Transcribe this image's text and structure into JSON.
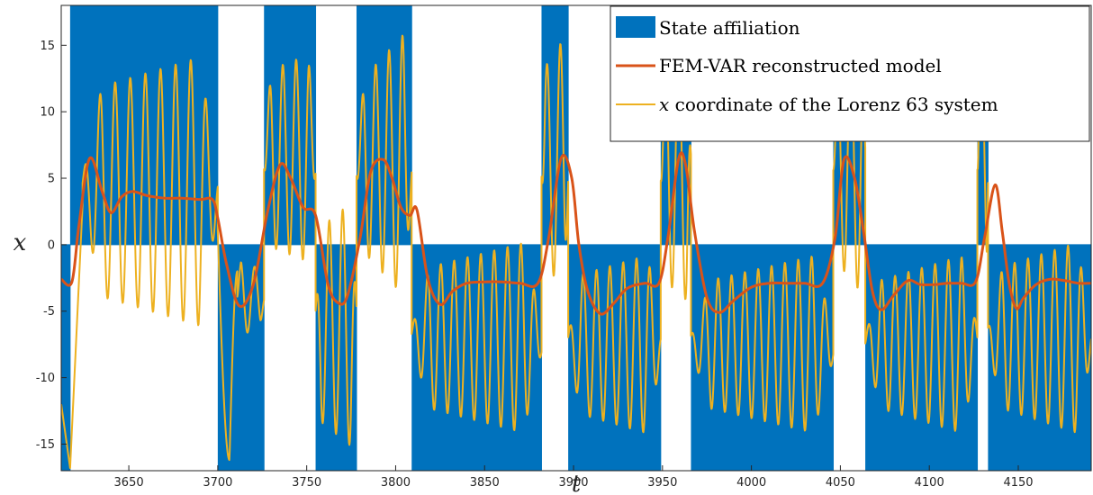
{
  "chart_data": {
    "type": "line",
    "xlabel": "t",
    "ylabel": "x",
    "xlim": [
      3612,
      3191
    ],
    "ylim": [
      -17,
      18
    ],
    "xticks": [
      3650,
      3700,
      3750,
      3800,
      3850,
      3900,
      3950,
      4000,
      4050,
      4100,
      4150
    ],
    "yticks": [
      15,
      10,
      5,
      0,
      -5,
      -10,
      -15
    ],
    "grid": false,
    "legend_position": "top-right",
    "legend": [
      {
        "label": "State affiliation",
        "kind": "patch"
      },
      {
        "label_math": "x",
        "label": " coordinate of the Lorenz 63 system",
        "kind": "line"
      },
      {
        "label": "FEM-VAR reconstructed model",
        "kind": "line"
      }
    ],
    "colors": {
      "state_affiliation": "#0072BD",
      "fem_var": "#D95319",
      "lorenz_x": "#EDB120"
    },
    "state_affiliation": [
      {
        "start": 3612,
        "end": 3617,
        "value": -17
      },
      {
        "start": 3617,
        "end": 3700,
        "value": 18
      },
      {
        "start": 3700,
        "end": 3726,
        "value": -17
      },
      {
        "start": 3726,
        "end": 3755,
        "value": 18
      },
      {
        "start": 3755,
        "end": 3778,
        "value": -17
      },
      {
        "start": 3778,
        "end": 3809,
        "value": 18
      },
      {
        "start": 3809,
        "end": 3882,
        "value": -17
      },
      {
        "start": 3882,
        "end": 3897,
        "value": 18
      },
      {
        "start": 3897,
        "end": 3949,
        "value": -17
      },
      {
        "start": 3949,
        "end": 3958,
        "value": 18
      },
      {
        "start": 3958,
        "end": 3966,
        "value": 18
      },
      {
        "start": 3966,
        "end": 4046,
        "value": -17
      },
      {
        "start": 4046,
        "end": 4064,
        "value": 18
      },
      {
        "start": 4064,
        "end": 4127,
        "value": -17
      },
      {
        "start": 4127,
        "end": 4133,
        "value": 18
      },
      {
        "start": 4133,
        "end": 4191,
        "value": -17
      }
    ],
    "fem_var": {
      "name": "FEM-VAR reconstructed model",
      "x": [
        3612,
        3618,
        3622,
        3628,
        3635,
        3640,
        3646,
        3652,
        3660,
        3670,
        3680,
        3690,
        3697,
        3700,
        3705,
        3712,
        3720,
        3728,
        3735,
        3741,
        3748,
        3755,
        3762,
        3768,
        3773,
        3780,
        3786,
        3793,
        3798,
        3803,
        3808,
        3812,
        3818,
        3825,
        3832,
        3840,
        3850,
        3860,
        3870,
        3880,
        3886,
        3893,
        3899,
        3903,
        3908,
        3915,
        3922,
        3930,
        3940,
        3948,
        3953,
        3959,
        3963,
        3968,
        3975,
        3982,
        3990,
        4000,
        4010,
        4020,
        4030,
        4040,
        4047,
        4052,
        4058,
        4063,
        4068,
        4073,
        4080,
        4088,
        4095,
        4103,
        4110,
        4118,
        4126,
        4131,
        4137,
        4141,
        4145,
        4149,
        4153,
        4160,
        4168,
        4176,
        4184,
        4191
      ],
      "y": [
        -2.6,
        -2.8,
        1.5,
        6.5,
        4.0,
        2.4,
        3.6,
        4.0,
        3.7,
        3.5,
        3.5,
        3.4,
        3.4,
        2.0,
        -1.5,
        -4.6,
        -3.0,
        2.5,
        6.0,
        5.0,
        2.8,
        2.2,
        -3.0,
        -4.4,
        -3.8,
        0.5,
        5.5,
        6.4,
        5.0,
        2.8,
        2.2,
        2.6,
        -2.5,
        -4.5,
        -3.5,
        -2.9,
        -2.8,
        -2.8,
        -2.9,
        -2.9,
        0.5,
        6.5,
        5.0,
        0.0,
        -3.5,
        -5.2,
        -4.5,
        -3.3,
        -2.9,
        -2.9,
        0.5,
        6.4,
        6.0,
        1.0,
        -4.0,
        -5.1,
        -4.2,
        -3.2,
        -2.9,
        -2.9,
        -2.9,
        -2.9,
        0.5,
        6.4,
        5.0,
        1.0,
        -3.5,
        -4.9,
        -3.8,
        -2.7,
        -3.0,
        -3.0,
        -2.9,
        -2.9,
        -2.8,
        0.5,
        4.5,
        1.0,
        -3.0,
        -4.8,
        -4.0,
        -3.0,
        -2.6,
        -2.7,
        -2.9,
        -2.9
      ]
    },
    "lorenz_x": {
      "name": "x coordinate of the Lorenz 63 system",
      "segments": [
        {
          "t0": 3612,
          "t1": 3617,
          "kind": "lin",
          "a": -12,
          "b": -16.8
        },
        {
          "t0": 3617,
          "t1": 3624,
          "kind": "lin",
          "a": -16.8,
          "b": 3
        },
        {
          "t0": 3624,
          "t1": 3700,
          "kind": "osc",
          "period": 8.5,
          "base": 4.0,
          "amp0": 7.5,
          "amp1": 10.5,
          "phase": 0.6
        },
        {
          "t0": 3700,
          "t1": 3711,
          "kind": "dip",
          "a": 1.0,
          "min": -16.2,
          "b": -2.0
        },
        {
          "t0": 3711,
          "t1": 3726,
          "kind": "osc",
          "period": 8.0,
          "base": -4.0,
          "amp0": 3.0,
          "amp1": 2.0,
          "phase": 0.2
        },
        {
          "t0": 3726,
          "t1": 3755,
          "kind": "osc",
          "period": 7.5,
          "base": 6.5,
          "amp0": 6.5,
          "amp1": 8.0,
          "phase": -1.0
        },
        {
          "t0": 3755,
          "t1": 3778,
          "kind": "osc",
          "period": 7.5,
          "base": -6.0,
          "amp0": 7.0,
          "amp1": 9.5,
          "phase": 1.4
        },
        {
          "t0": 3778,
          "t1": 3809,
          "kind": "osc",
          "period": 7.5,
          "base": 6.0,
          "amp0": 6.0,
          "amp1": 10.5,
          "phase": -1.2
        },
        {
          "t0": 3809,
          "t1": 3882,
          "kind": "osc",
          "period": 7.5,
          "base": -7.0,
          "amp0": 5.0,
          "amp1": 7.5,
          "phase": 0.4
        },
        {
          "t0": 3882,
          "t1": 3897,
          "kind": "osc",
          "period": 7.5,
          "base": 6.0,
          "amp0": 7.0,
          "amp1": 10.0,
          "phase": -1.0
        },
        {
          "t0": 3897,
          "t1": 3949,
          "kind": "osc",
          "period": 7.5,
          "base": -7.5,
          "amp0": 5.0,
          "amp1": 7.0,
          "phase": 0.8
        },
        {
          "t0": 3949,
          "t1": 3966,
          "kind": "osc",
          "period": 7.5,
          "base": 5.5,
          "amp0": 8.0,
          "amp1": 10.0,
          "phase": -0.6
        },
        {
          "t0": 3966,
          "t1": 4046,
          "kind": "osc",
          "period": 7.5,
          "base": -7.5,
          "amp0": 4.5,
          "amp1": 7.0,
          "phase": 1.3
        },
        {
          "t0": 4046,
          "t1": 4064,
          "kind": "osc",
          "period": 7.5,
          "base": 6.0,
          "amp0": 7.0,
          "amp1": 10.0,
          "phase": -0.4
        },
        {
          "t0": 4064,
          "t1": 4127,
          "kind": "osc",
          "period": 7.5,
          "base": -7.5,
          "amp0": 4.5,
          "amp1": 7.0,
          "phase": 0.1
        },
        {
          "t0": 4127,
          "t1": 4133,
          "kind": "osc",
          "period": 7.5,
          "base": 6.0,
          "amp0": 8.0,
          "amp1": 9.0,
          "phase": -0.3
        },
        {
          "t0": 4133,
          "t1": 4191,
          "kind": "osc",
          "period": 7.5,
          "base": -7.0,
          "amp0": 5.0,
          "amp1": 7.5,
          "phase": 1.6
        }
      ]
    }
  }
}
